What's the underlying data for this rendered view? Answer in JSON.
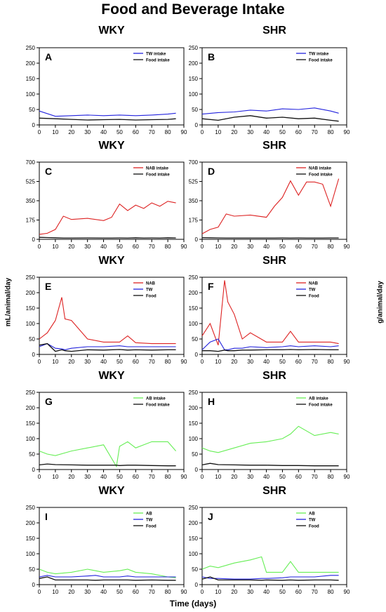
{
  "title": "Food and Beverage Intake",
  "ylabel_left": "mL/animal/day",
  "ylabel_right": "g/animal/day",
  "xlabel": "Time (days)",
  "colors": {
    "tw": "#2222dd",
    "food": "#111111",
    "nab": "#dd2222",
    "ab": "#66ee55"
  },
  "chart_data": [
    {
      "type": "line",
      "panel": "A",
      "strain": "WKY",
      "x": [
        0,
        10,
        20,
        30,
        40,
        50,
        60,
        70,
        80,
        85
      ],
      "ylim": [
        0,
        250
      ],
      "yticks": [
        0,
        50,
        100,
        150,
        200,
        250
      ],
      "xlim": [
        0,
        90
      ],
      "xticks": [
        0,
        10,
        20,
        30,
        40,
        50,
        60,
        70,
        80,
        90
      ],
      "legend_position": "top-right",
      "series": [
        {
          "name": "TW intake",
          "color": "#2222dd",
          "y": [
            45,
            28,
            30,
            32,
            30,
            32,
            30,
            32,
            35,
            38
          ]
        },
        {
          "name": "Food intake",
          "color": "#111111",
          "y": [
            22,
            20,
            18,
            16,
            17,
            18,
            16,
            17,
            18,
            20
          ]
        }
      ]
    },
    {
      "type": "line",
      "panel": "B",
      "strain": "SHR",
      "x": [
        0,
        10,
        20,
        30,
        40,
        50,
        60,
        70,
        80,
        85
      ],
      "ylim": [
        0,
        250
      ],
      "yticks": [
        0,
        50,
        100,
        150,
        200,
        250
      ],
      "xlim": [
        0,
        90
      ],
      "xticks": [
        0,
        10,
        20,
        30,
        40,
        50,
        60,
        70,
        80,
        90
      ],
      "legend_position": "top-right",
      "series": [
        {
          "name": "TW intake",
          "color": "#2222dd",
          "y": [
            35,
            40,
            42,
            48,
            45,
            52,
            50,
            55,
            45,
            38
          ]
        },
        {
          "name": "Food intake",
          "color": "#111111",
          "y": [
            20,
            15,
            25,
            30,
            22,
            25,
            20,
            22,
            15,
            12
          ]
        }
      ]
    },
    {
      "type": "line",
      "panel": "C",
      "strain": "WKY",
      "x": [
        0,
        5,
        10,
        15,
        20,
        30,
        40,
        45,
        50,
        55,
        60,
        65,
        70,
        75,
        80,
        85
      ],
      "ylim": [
        0,
        700
      ],
      "yticks": [
        0,
        175,
        350,
        525,
        700
      ],
      "xlim": [
        0,
        90
      ],
      "xticks": [
        0,
        10,
        20,
        30,
        40,
        50,
        60,
        70,
        80,
        90
      ],
      "legend_position": "top-right",
      "series": [
        {
          "name": "NAB intake",
          "color": "#dd2222",
          "y": [
            45,
            55,
            90,
            210,
            180,
            190,
            170,
            200,
            320,
            260,
            310,
            280,
            330,
            300,
            345,
            330
          ]
        },
        {
          "name": "Food intake",
          "color": "#111111",
          "y": [
            18,
            16,
            14,
            12,
            12,
            13,
            12,
            12,
            13,
            12,
            14,
            12,
            13,
            12,
            14,
            13
          ]
        }
      ]
    },
    {
      "type": "line",
      "panel": "D",
      "strain": "SHR",
      "x": [
        0,
        5,
        10,
        15,
        20,
        30,
        40,
        45,
        50,
        55,
        60,
        65,
        70,
        75,
        80,
        85
      ],
      "ylim": [
        0,
        700
      ],
      "yticks": [
        0,
        175,
        350,
        525,
        700
      ],
      "xlim": [
        0,
        90
      ],
      "xticks": [
        0,
        10,
        20,
        30,
        40,
        50,
        60,
        70,
        80,
        90
      ],
      "legend_position": "top-right",
      "series": [
        {
          "name": "NAB intake",
          "color": "#dd2222",
          "y": [
            50,
            90,
            110,
            230,
            210,
            220,
            200,
            300,
            380,
            530,
            400,
            520,
            520,
            500,
            300,
            550
          ]
        },
        {
          "name": "Food intake",
          "color": "#111111",
          "y": [
            15,
            14,
            13,
            12,
            12,
            12,
            12,
            12,
            13,
            12,
            13,
            12,
            12,
            12,
            13,
            13
          ]
        }
      ]
    },
    {
      "type": "line",
      "panel": "E",
      "strain": "WKY",
      "x": [
        0,
        5,
        10,
        14,
        16,
        20,
        30,
        40,
        50,
        55,
        60,
        70,
        80,
        85
      ],
      "ylim": [
        0,
        250
      ],
      "yticks": [
        0,
        50,
        100,
        150,
        200,
        250
      ],
      "xlim": [
        0,
        90
      ],
      "xticks": [
        0,
        10,
        20,
        30,
        40,
        50,
        60,
        70,
        80,
        90
      ],
      "legend_position": "top-right",
      "series": [
        {
          "name": "NAB",
          "color": "#dd2222",
          "y": [
            50,
            70,
            110,
            185,
            115,
            110,
            50,
            40,
            40,
            60,
            38,
            35,
            35,
            35
          ]
        },
        {
          "name": "TW",
          "color": "#2222dd",
          "y": [
            25,
            35,
            20,
            18,
            15,
            20,
            25,
            25,
            28,
            25,
            25,
            25,
            25,
            25
          ]
        },
        {
          "name": "Food",
          "color": "#111111",
          "y": [
            30,
            35,
            10,
            15,
            12,
            10,
            15,
            14,
            16,
            14,
            15,
            14,
            15,
            15
          ]
        }
      ]
    },
    {
      "type": "line",
      "panel": "F",
      "strain": "SHR",
      "x": [
        0,
        5,
        10,
        14,
        16,
        20,
        25,
        30,
        40,
        50,
        55,
        60,
        70,
        80,
        85
      ],
      "ylim": [
        0,
        250
      ],
      "yticks": [
        0,
        50,
        100,
        150,
        200,
        250
      ],
      "xlim": [
        0,
        90
      ],
      "xticks": [
        0,
        10,
        20,
        30,
        40,
        50,
        60,
        70,
        80,
        90
      ],
      "legend_position": "top-right",
      "series": [
        {
          "name": "NAB",
          "color": "#dd2222",
          "y": [
            60,
            100,
            30,
            240,
            170,
            130,
            50,
            70,
            40,
            40,
            75,
            40,
            40,
            40,
            35
          ]
        },
        {
          "name": "TW",
          "color": "#2222dd",
          "y": [
            15,
            40,
            50,
            15,
            15,
            20,
            20,
            25,
            22,
            25,
            28,
            25,
            28,
            25,
            28
          ]
        },
        {
          "name": "Food",
          "color": "#111111",
          "y": [
            12,
            12,
            10,
            14,
            12,
            12,
            14,
            14,
            15,
            15,
            16,
            15,
            16,
            15,
            15
          ]
        }
      ]
    },
    {
      "type": "line",
      "panel": "G",
      "strain": "WKY",
      "x": [
        0,
        5,
        10,
        20,
        30,
        40,
        48,
        50,
        55,
        60,
        70,
        80,
        85
      ],
      "ylim": [
        0,
        250
      ],
      "yticks": [
        0,
        50,
        100,
        150,
        200,
        250
      ],
      "xlim": [
        0,
        90
      ],
      "xticks": [
        0,
        10,
        20,
        30,
        40,
        50,
        60,
        70,
        80,
        90
      ],
      "legend_position": "top-right",
      "series": [
        {
          "name": "AB intake",
          "color": "#66ee55",
          "y": [
            60,
            50,
            45,
            60,
            70,
            80,
            10,
            75,
            90,
            70,
            90,
            90,
            60
          ]
        },
        {
          "name": "Food intake",
          "color": "#111111",
          "y": [
            15,
            18,
            16,
            15,
            14,
            14,
            14,
            13,
            14,
            14,
            13,
            12,
            12
          ]
        }
      ]
    },
    {
      "type": "line",
      "panel": "H",
      "strain": "SHR",
      "x": [
        0,
        5,
        10,
        20,
        30,
        40,
        50,
        55,
        60,
        70,
        80,
        85
      ],
      "ylim": [
        0,
        250
      ],
      "yticks": [
        0,
        50,
        100,
        150,
        200,
        250
      ],
      "xlim": [
        0,
        90
      ],
      "xticks": [
        0,
        10,
        20,
        30,
        40,
        50,
        60,
        70,
        80,
        90
      ],
      "legend_position": "top-right",
      "series": [
        {
          "name": "AB intake",
          "color": "#66ee55",
          "y": [
            70,
            60,
            55,
            70,
            85,
            90,
            100,
            115,
            140,
            110,
            120,
            115
          ]
        },
        {
          "name": "Food intake",
          "color": "#111111",
          "y": [
            15,
            20,
            16,
            15,
            14,
            14,
            13,
            13,
            13,
            12,
            12,
            12
          ]
        }
      ]
    },
    {
      "type": "line",
      "panel": "I",
      "strain": "WKY",
      "x": [
        0,
        5,
        10,
        20,
        30,
        35,
        40,
        50,
        55,
        60,
        70,
        80,
        85
      ],
      "ylim": [
        0,
        250
      ],
      "yticks": [
        0,
        50,
        100,
        150,
        200,
        250
      ],
      "xlim": [
        0,
        90
      ],
      "xticks": [
        0,
        10,
        20,
        30,
        40,
        50,
        60,
        70,
        80,
        90
      ],
      "legend_position": "top-right",
      "series": [
        {
          "name": "AB",
          "color": "#66ee55",
          "y": [
            50,
            40,
            35,
            40,
            50,
            45,
            40,
            45,
            50,
            40,
            35,
            25,
            22
          ]
        },
        {
          "name": "TW",
          "color": "#2222dd",
          "y": [
            25,
            30,
            25,
            25,
            28,
            30,
            25,
            25,
            28,
            25,
            25,
            25,
            25
          ]
        },
        {
          "name": "Food",
          "color": "#111111",
          "y": [
            20,
            25,
            15,
            15,
            15,
            14,
            15,
            15,
            15,
            14,
            15,
            14,
            14
          ]
        }
      ]
    },
    {
      "type": "line",
      "panel": "J",
      "strain": "SHR",
      "x": [
        0,
        5,
        10,
        20,
        30,
        37,
        40,
        50,
        55,
        60,
        70,
        80,
        85
      ],
      "ylim": [
        0,
        250
      ],
      "yticks": [
        0,
        50,
        100,
        150,
        200,
        250
      ],
      "xlim": [
        0,
        90
      ],
      "xticks": [
        0,
        10,
        20,
        30,
        40,
        50,
        60,
        70,
        80,
        90
      ],
      "legend_position": "top-right",
      "series": [
        {
          "name": "AB",
          "color": "#66ee55",
          "y": [
            50,
            60,
            55,
            70,
            80,
            90,
            40,
            40,
            75,
            40,
            40,
            40,
            40
          ]
        },
        {
          "name": "TW",
          "color": "#2222dd",
          "y": [
            25,
            20,
            20,
            18,
            18,
            20,
            20,
            22,
            25,
            25,
            25,
            30,
            30
          ]
        },
        {
          "name": "Food",
          "color": "#111111",
          "y": [
            18,
            25,
            15,
            15,
            15,
            14,
            15,
            14,
            15,
            14,
            15,
            15,
            14
          ]
        }
      ]
    }
  ]
}
